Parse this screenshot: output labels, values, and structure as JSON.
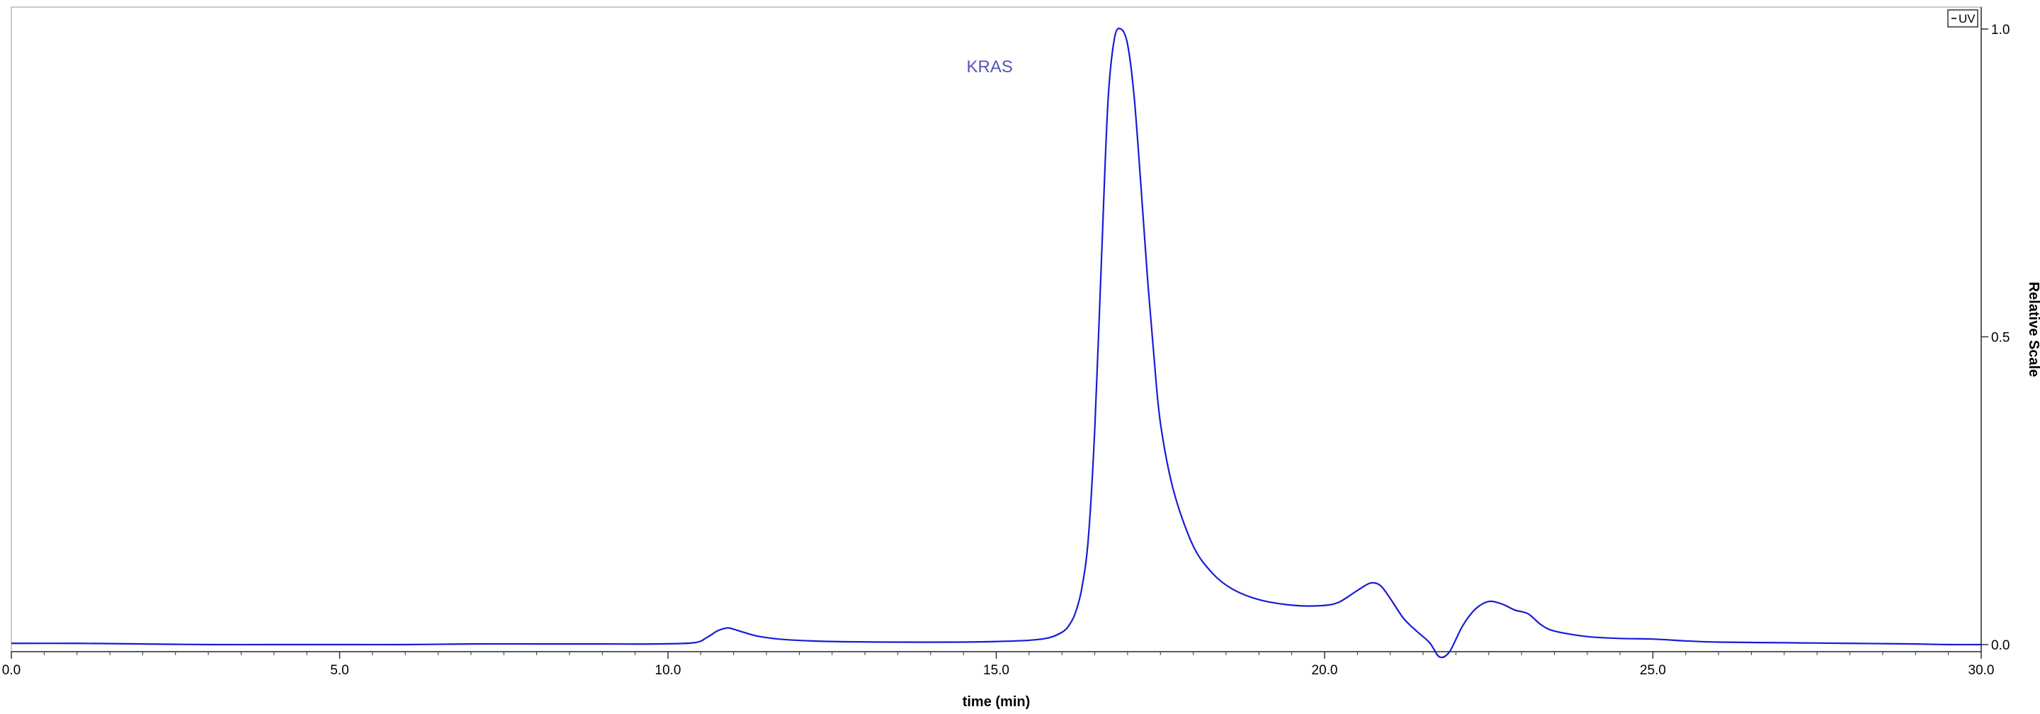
{
  "colors": {
    "trace": "#1a1ad6",
    "annotation": "#5555bb",
    "axis": "#333333",
    "frame": "#b8b8b8",
    "text": "#000000"
  },
  "legend": {
    "label": "UV",
    "icon": "line-swatch-icon"
  },
  "chart_data": {
    "type": "line",
    "xlabel": "time (min)",
    "ylabel": "Relative Scale",
    "xlim": [
      0.0,
      30.0
    ],
    "ylim": [
      0.0,
      1.0
    ],
    "x_ticks": [
      "0.0",
      "5.0",
      "10.0",
      "15.0",
      "20.0",
      "25.0",
      "30.0"
    ],
    "y_ticks": [
      "0.0",
      "0.5",
      "1.0"
    ],
    "grid": false,
    "y_axis_side": "right",
    "legend_position": "top-right",
    "annotations": [
      {
        "text": "KRAS",
        "x": 14.9,
        "y": 0.93
      }
    ],
    "series": [
      {
        "name": "UV",
        "x": [
          0.0,
          1.0,
          2.0,
          3.0,
          4.0,
          5.0,
          6.0,
          7.0,
          8.0,
          9.0,
          9.8,
          10.4,
          10.6,
          10.75,
          10.9,
          11.0,
          11.15,
          11.4,
          11.8,
          12.5,
          13.5,
          14.5,
          15.0,
          15.5,
          15.8,
          16.0,
          16.1,
          16.2,
          16.3,
          16.4,
          16.5,
          16.6,
          16.7,
          16.8,
          16.9,
          17.0,
          17.1,
          17.2,
          17.3,
          17.4,
          17.5,
          17.7,
          18.0,
          18.3,
          18.6,
          19.0,
          19.5,
          19.9,
          20.2,
          20.5,
          20.7,
          20.85,
          21.0,
          21.2,
          21.4,
          21.6,
          21.75,
          21.9,
          22.1,
          22.3,
          22.5,
          22.7,
          22.9,
          23.1,
          23.3,
          23.5,
          24.0,
          24.5,
          25.0,
          25.5,
          26.0,
          27.0,
          28.0,
          29.0,
          29.5,
          30.0
        ],
        "values": [
          0.002,
          0.002,
          0.001,
          0.0,
          0.0,
          0.0,
          0.0,
          0.001,
          0.001,
          0.001,
          0.001,
          0.003,
          0.012,
          0.022,
          0.027,
          0.025,
          0.02,
          0.013,
          0.008,
          0.005,
          0.004,
          0.004,
          0.005,
          0.007,
          0.011,
          0.02,
          0.03,
          0.05,
          0.09,
          0.17,
          0.35,
          0.62,
          0.88,
          0.985,
          1.0,
          0.975,
          0.89,
          0.75,
          0.6,
          0.47,
          0.36,
          0.25,
          0.16,
          0.115,
          0.09,
          0.073,
          0.064,
          0.063,
          0.068,
          0.088,
          0.1,
          0.096,
          0.075,
          0.043,
          0.022,
          0.003,
          -0.02,
          -0.012,
          0.03,
          0.058,
          0.07,
          0.066,
          0.056,
          0.05,
          0.032,
          0.022,
          0.013,
          0.01,
          0.009,
          0.006,
          0.004,
          0.003,
          0.002,
          0.001,
          0.0,
          0.0
        ]
      }
    ]
  }
}
